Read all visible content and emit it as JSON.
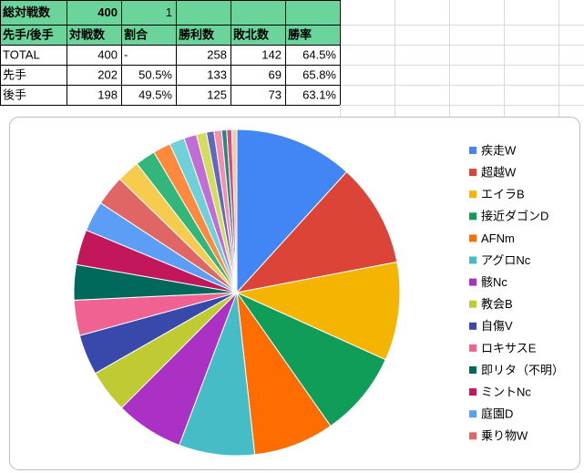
{
  "table": {
    "rows": [
      [
        "総対戦数",
        "400",
        "1"
      ],
      [
        "先手/後手",
        "対戦数",
        "割合",
        "勝利数",
        "敗北数",
        "勝率"
      ],
      [
        "TOTAL",
        "400",
        "-",
        "258",
        "142",
        "64.5%"
      ],
      [
        "先手",
        "202",
        "50.5%",
        "133",
        "69",
        "65.8%"
      ],
      [
        "後手",
        "198",
        "49.5%",
        "125",
        "73",
        "63.1%"
      ]
    ]
  },
  "chart_data": {
    "type": "pie",
    "categories": [
      "疾走W",
      "超越W",
      "エイラB",
      "接近ダゴンD",
      "AFNm",
      "アグロNc",
      "骸Nc",
      "教会B",
      "自傷V",
      "ロキサスE",
      "即リタ（不明）",
      "ミントNc",
      "庭園D",
      "乗り物W",
      null,
      null,
      null,
      null,
      null,
      null,
      null,
      null,
      null,
      null,
      null
    ],
    "values": [
      47,
      41,
      39,
      34,
      32,
      30,
      27,
      17,
      16,
      14,
      14,
      14,
      12,
      12,
      9,
      8,
      7,
      6,
      5,
      4,
      3,
      3,
      2,
      2,
      2
    ],
    "colors": [
      "#4285f4",
      "#db4437",
      "#f4b400",
      "#0f9d58",
      "#ff6d01",
      "#46bdc6",
      "#ab30c4",
      "#c0ca33",
      "#3949ab",
      "#f06292",
      "#00695c",
      "#c2185b",
      "#5c9df5",
      "#e06666",
      "#f7cb4d",
      "#33b679",
      "#ff8a3d",
      "#6fd0d8",
      "#c26cd6",
      "#d4dc5c",
      "#5c6bc0",
      "#f48fb1",
      "#26897b",
      "#d84f7c",
      "#f3c9a6"
    ]
  }
}
